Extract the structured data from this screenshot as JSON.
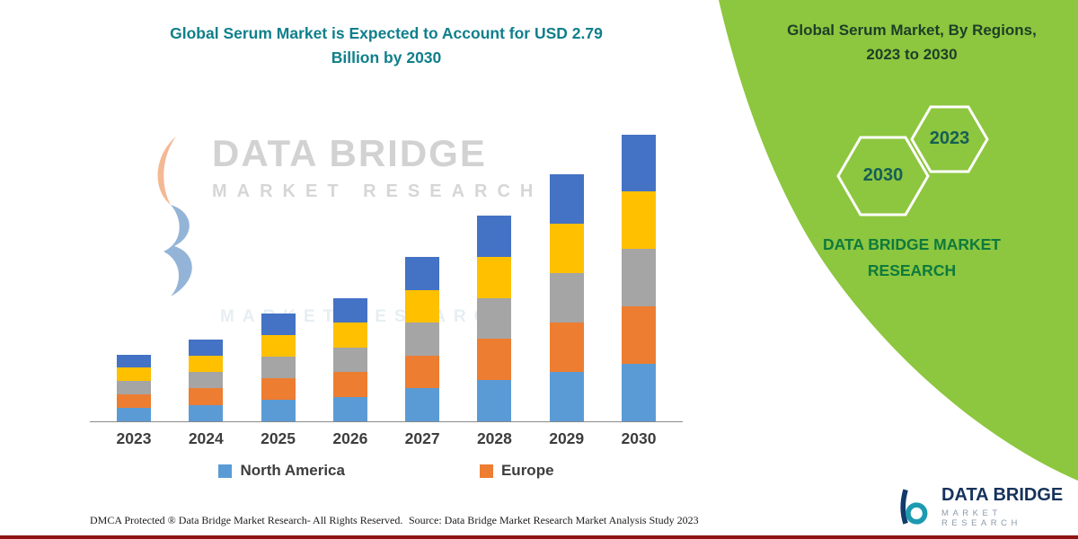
{
  "left": {
    "title_lines": [
      "Global Serum Market is Expected to Account for USD 2.79",
      "Billion by 2030"
    ]
  },
  "watermark": {
    "brand": "DATA BRIDGE",
    "sub": "MARKET  RESEARCH",
    "faint_sub": "MARKET  RESEARCH"
  },
  "chart_data": {
    "type": "bar",
    "stacked": true,
    "title": "Global Serum Market is Expected to Account for USD 2.79 Billion by 2030",
    "categories": [
      "2023",
      "2024",
      "2025",
      "2026",
      "2027",
      "2028",
      "2029",
      "2030"
    ],
    "series": [
      {
        "name": "North America",
        "color": "#5B9BD5",
        "values": [
          0.13,
          0.16,
          0.21,
          0.24,
          0.32,
          0.4,
          0.48,
          0.56
        ]
      },
      {
        "name": "Europe",
        "color": "#ED7D31",
        "values": [
          0.13,
          0.16,
          0.21,
          0.24,
          0.32,
          0.4,
          0.48,
          0.56
        ]
      },
      {
        "name": "unlabeled-gray-region",
        "color": "#A5A5A5",
        "values": [
          0.13,
          0.16,
          0.21,
          0.24,
          0.32,
          0.4,
          0.48,
          0.56
        ]
      },
      {
        "name": "unlabeled-yellow-region",
        "color": "#FFC000",
        "values": [
          0.13,
          0.16,
          0.21,
          0.24,
          0.32,
          0.4,
          0.48,
          0.56
        ]
      },
      {
        "name": "unlabeled-blue-region",
        "color": "#4472C4",
        "values": [
          0.13,
          0.16,
          0.21,
          0.24,
          0.32,
          0.4,
          0.48,
          0.55
        ]
      }
    ],
    "totals": [
      0.65,
      0.8,
      1.05,
      1.2,
      1.6,
      2.0,
      2.4,
      2.79
    ],
    "ylim": [
      0,
      2.9
    ],
    "grid": false,
    "legend_position": "bottom",
    "note": "No axis values shown; values in USD billion estimated from bar heights anchored to the stated USD 2.79 billion total in 2030. Only North America and Europe appear in the visible legend."
  },
  "legend": {
    "items": [
      {
        "label": "North America",
        "color": "#5B9BD5"
      },
      {
        "label": "Europe",
        "color": "#ED7D31"
      }
    ]
  },
  "right_panel": {
    "bg": "#8DC63F",
    "title_lines": [
      "Global Serum Market, By Regions,",
      "2023 to 2030"
    ],
    "hexagons": [
      {
        "label": "2030"
      },
      {
        "label": "2023"
      }
    ],
    "brand_lines": [
      "DATA BRIDGE MARKET",
      "RESEARCH"
    ]
  },
  "footer": {
    "dmca": "DMCA Protected ® Data Bridge Market Research-  All Rights Reserved.",
    "source": "Source: Data Bridge Market Research  Market Analysis Study 2023"
  },
  "brand_logo": {
    "name": "DATA BRIDGE",
    "sub": "MARKET RESEARCH"
  },
  "colors": {
    "panel_green": "#8DC63F",
    "title_teal": "#0F7F8B",
    "panel_title_green": "#1C3F27",
    "panel_brand_green": "#0E7A3D",
    "red_line": "#8E1414"
  }
}
